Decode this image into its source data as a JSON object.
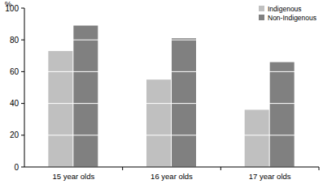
{
  "chart_data": {
    "type": "bar",
    "y_label": "%",
    "categories": [
      "15 year olds",
      "16 year olds",
      "17 year olds"
    ],
    "series": [
      {
        "name": "Indigenous",
        "color": "#c0c0c0",
        "values": [
          73,
          55,
          36
        ]
      },
      {
        "name": "Non-Indigenous",
        "color": "#808080",
        "values": [
          89,
          81,
          66
        ]
      }
    ],
    "ylim": [
      0,
      100
    ],
    "yticks": [
      0,
      20,
      40,
      60,
      80,
      100
    ],
    "grid": true,
    "legend": "upper right"
  }
}
